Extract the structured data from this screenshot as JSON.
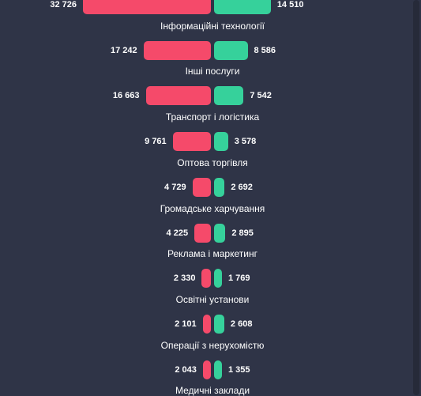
{
  "chart_data": {
    "type": "bar",
    "categories": [
      "",
      "Інформаційні технології",
      "Інші послуги",
      "Транспорт і логістика",
      "Оптова торгівля",
      "Громадське харчування",
      "Реклама і маркетинг",
      "Освітні установи",
      "Операції з нерухомістю",
      "Медичні заклади"
    ],
    "series": [
      {
        "values": [
          32726,
          17242,
          16663,
          9761,
          4729,
          4225,
          2330,
          2101,
          2043,
          null
        ]
      },
      {
        "values": [
          14510,
          8586,
          7542,
          3578,
          2692,
          2895,
          1769,
          2608,
          1355,
          null
        ]
      }
    ],
    "value_labels": {
      "left": [
        "32 726",
        "17 242",
        "16 663",
        "9 761",
        "4 729",
        "4 225",
        "2 330",
        "2 101",
        "2 043",
        ""
      ],
      "right": [
        "14 510",
        "8 586",
        "7 542",
        "3 578",
        "2 692",
        "2 895",
        "1 769",
        "2 608",
        "1 355",
        ""
      ]
    },
    "colors": {
      "left": "#f54a6a",
      "right": "#36d19b",
      "background": "#2f3447"
    },
    "legend": "none",
    "grid": false
  }
}
